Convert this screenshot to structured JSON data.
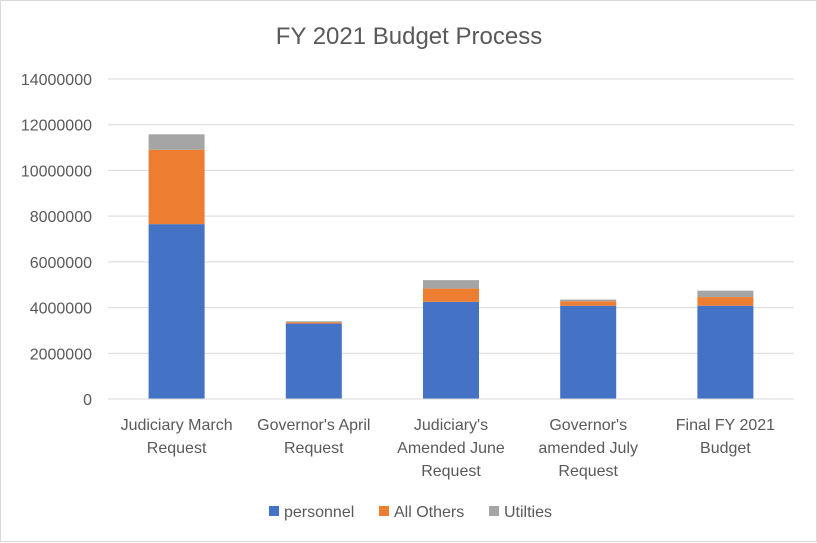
{
  "chart_data": {
    "type": "bar",
    "stacked": true,
    "title": "FY 2021 Budget Process",
    "categories": [
      [
        "Judiciary March",
        "Request"
      ],
      [
        "Governor's April",
        "Request"
      ],
      [
        "Judiciary's",
        "Amended June",
        "Request"
      ],
      [
        "Governor's",
        "amended July",
        "Request"
      ],
      [
        "Final FY 2021",
        "Budget"
      ]
    ],
    "series": [
      {
        "name": "personnel",
        "color": "#4472c4",
        "values": [
          7650000,
          3300000,
          4250000,
          4080000,
          4080000
        ]
      },
      {
        "name": "All Others",
        "color": "#ed7d31",
        "values": [
          3250000,
          60000,
          580000,
          200000,
          380000
        ]
      },
      {
        "name": "Utilties",
        "color": "#a5a5a5",
        "values": [
          680000,
          40000,
          370000,
          70000,
          280000
        ]
      }
    ],
    "ylim": [
      0,
      14000000
    ],
    "yticks": [
      "0",
      "2000000",
      "4000000",
      "6000000",
      "8000000",
      "10000000",
      "12000000",
      "14000000"
    ],
    "grid": true,
    "legend_position": "bottom"
  }
}
